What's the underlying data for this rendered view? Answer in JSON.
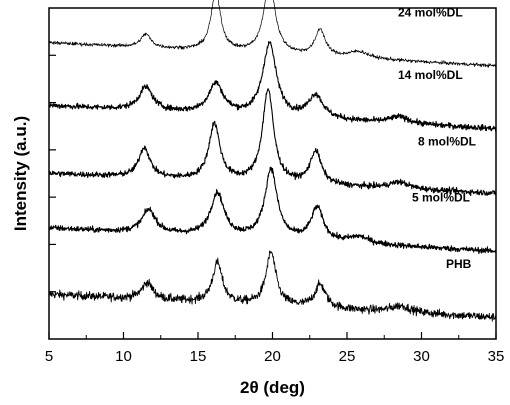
{
  "chart_data": {
    "type": "line",
    "title": "",
    "xlabel": "2θ (deg)",
    "ylabel": "Intensity (a.u.)",
    "xlim": [
      5,
      35
    ],
    "xticks": [
      5,
      10,
      15,
      20,
      25,
      30,
      35
    ],
    "ytick_count": 6,
    "grid": false,
    "legend": "inline labels at right of each curve",
    "series": [
      {
        "name": "PHB",
        "baseline": 0.1,
        "decay": 0.07,
        "peaks": [
          {
            "x": 11.6,
            "h": 0.05,
            "w": 0.45
          },
          {
            "x": 16.3,
            "h": 0.12,
            "w": 0.4
          },
          {
            "x": 19.9,
            "h": 0.16,
            "w": 0.4
          },
          {
            "x": 23.2,
            "h": 0.07,
            "w": 0.45
          },
          {
            "x": 28.6,
            "h": 0.02,
            "w": 0.8
          }
        ],
        "noise": 0.012,
        "line_width": 0.9
      },
      {
        "name": "5 mol%DL",
        "baseline": 0.3,
        "decay": 0.07,
        "peaks": [
          {
            "x": 11.7,
            "h": 0.07,
            "w": 0.55
          },
          {
            "x": 16.3,
            "h": 0.13,
            "w": 0.55
          },
          {
            "x": 19.9,
            "h": 0.21,
            "w": 0.5
          },
          {
            "x": 23.0,
            "h": 0.1,
            "w": 0.5
          },
          {
            "x": 25.8,
            "h": 0.02,
            "w": 0.8
          }
        ],
        "noise": 0.008,
        "line_width": 1.1
      },
      {
        "name": "8 mol%DL",
        "baseline": 0.47,
        "decay": 0.06,
        "peaks": [
          {
            "x": 11.4,
            "h": 0.09,
            "w": 0.45
          },
          {
            "x": 16.1,
            "h": 0.17,
            "w": 0.45
          },
          {
            "x": 19.7,
            "h": 0.28,
            "w": 0.45
          },
          {
            "x": 22.9,
            "h": 0.1,
            "w": 0.45
          },
          {
            "x": 28.5,
            "h": 0.02,
            "w": 0.8
          }
        ],
        "noise": 0.008,
        "line_width": 1.1
      },
      {
        "name": "14 mol%DL",
        "baseline": 0.67,
        "decay": 0.07,
        "peaks": [
          {
            "x": 11.5,
            "h": 0.07,
            "w": 0.55
          },
          {
            "x": 16.2,
            "h": 0.09,
            "w": 0.6
          },
          {
            "x": 19.8,
            "h": 0.22,
            "w": 0.55
          },
          {
            "x": 22.9,
            "h": 0.07,
            "w": 0.6
          },
          {
            "x": 28.5,
            "h": 0.02,
            "w": 0.8
          }
        ],
        "noise": 0.008,
        "line_width": 1.1
      },
      {
        "name": "24 mol%DL",
        "baseline": 0.86,
        "decay": 0.07,
        "peaks": [
          {
            "x": 11.5,
            "h": 0.04,
            "w": 0.4
          },
          {
            "x": 16.2,
            "h": 0.18,
            "w": 0.38
          },
          {
            "x": 19.8,
            "h": 0.22,
            "w": 0.45
          },
          {
            "x": 23.2,
            "h": 0.08,
            "w": 0.4
          },
          {
            "x": 25.8,
            "h": 0.02,
            "w": 0.8
          }
        ],
        "noise": 0.005,
        "line_width": 0.7
      }
    ]
  }
}
